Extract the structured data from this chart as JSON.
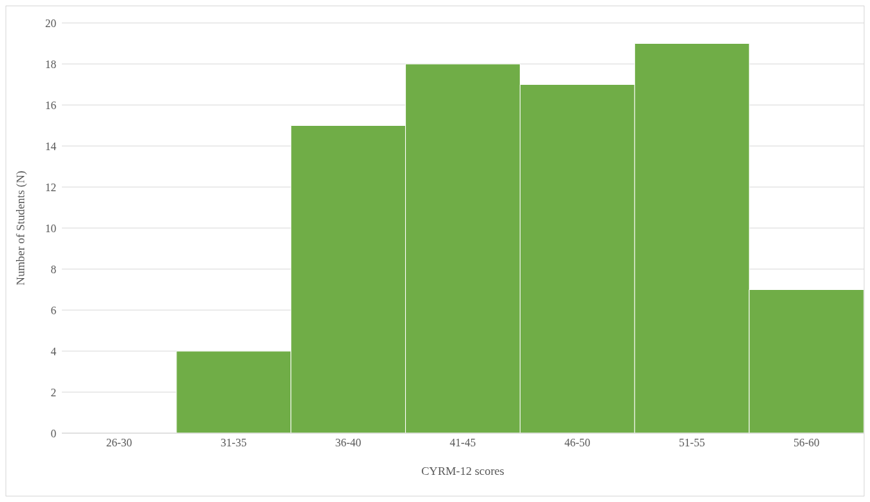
{
  "chart_data": {
    "type": "bar",
    "xlabel": "CYRM-12 scores",
    "ylabel": "Number of Students (N)",
    "categories": [
      "26-30",
      "31-35",
      "36-40",
      "41-45",
      "46-50",
      "51-55",
      "56-60"
    ],
    "values": [
      0,
      4,
      15,
      18,
      17,
      19,
      7
    ],
    "color": "#70ad47",
    "ylim": [
      0,
      20
    ],
    "yticks": [
      0,
      2,
      4,
      6,
      8,
      10,
      12,
      14,
      16,
      18,
      20
    ],
    "grid": "y"
  }
}
